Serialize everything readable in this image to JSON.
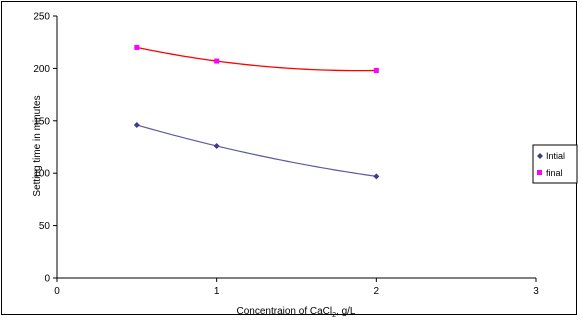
{
  "chart_data": {
    "type": "scatter",
    "title": "",
    "xlabel": "Concentraion of CaCl",
    "xlabel_subscript": "2",
    "xlabel_suffix": ", g/L",
    "ylabel": "Setting time in minutes",
    "xlim": [
      0,
      3
    ],
    "ylim": [
      0,
      250
    ],
    "xticks": [
      0,
      1,
      2,
      3
    ],
    "yticks": [
      0,
      50,
      100,
      150,
      200,
      250
    ],
    "grid": false,
    "legend_position": "right",
    "series": [
      {
        "name": "Intial",
        "color": "#3c3c8c",
        "line_color": "#5b5b9e",
        "marker": "diamond",
        "x": [
          0.5,
          1,
          2
        ],
        "y": [
          146,
          126,
          97
        ]
      },
      {
        "name": "final",
        "color": "#ff00ff",
        "line_color": "#ff0000",
        "marker": "square",
        "x": [
          0.5,
          1,
          2
        ],
        "y": [
          220,
          207,
          198
        ]
      }
    ]
  }
}
